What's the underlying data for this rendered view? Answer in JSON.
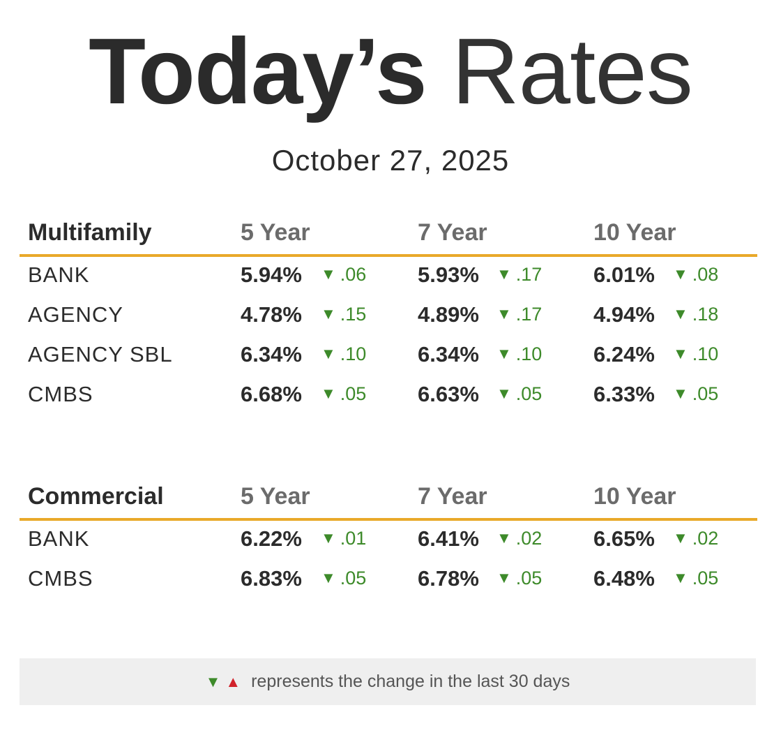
{
  "title": {
    "bold": "Today’s",
    "light": "Rates"
  },
  "date": "October 27, 2025",
  "multifamily": {
    "heading": "Multifamily",
    "columns": [
      "5 Year",
      "7 Year",
      "10 Year"
    ],
    "rows": [
      {
        "label": "BANK",
        "values": [
          {
            "rate": "5.94%",
            "change": ".06"
          },
          {
            "rate": "5.93%",
            "change": ".17"
          },
          {
            "rate": "6.01%",
            "change": ".08"
          }
        ]
      },
      {
        "label": "AGENCY",
        "values": [
          {
            "rate": "4.78%",
            "change": ".15"
          },
          {
            "rate": "4.89%",
            "change": ".17"
          },
          {
            "rate": "4.94%",
            "change": ".18"
          }
        ]
      },
      {
        "label": "AGENCY SBL",
        "values": [
          {
            "rate": "6.34%",
            "change": ".10"
          },
          {
            "rate": "6.34%",
            "change": ".10"
          },
          {
            "rate": "6.24%",
            "change": ".10"
          }
        ]
      },
      {
        "label": "CMBS",
        "values": [
          {
            "rate": "6.68%",
            "change": ".05"
          },
          {
            "rate": "6.63%",
            "change": ".05"
          },
          {
            "rate": "6.33%",
            "change": ".05"
          }
        ]
      }
    ]
  },
  "commercial": {
    "heading": "Commercial",
    "columns": [
      "5 Year",
      "7 Year",
      "10 Year"
    ],
    "rows": [
      {
        "label": "BANK",
        "values": [
          {
            "rate": "6.22%",
            "change": ".01"
          },
          {
            "rate": "6.41%",
            "change": ".02"
          },
          {
            "rate": "6.65%",
            "change": ".02"
          }
        ]
      },
      {
        "label": "CMBS",
        "values": [
          {
            "rate": "6.83%",
            "change": ".05"
          },
          {
            "rate": "6.78%",
            "change": ".05"
          },
          {
            "rate": "6.48%",
            "change": ".05"
          }
        ]
      }
    ]
  },
  "legend": {
    "down_glyph": "▼",
    "up_glyph": "▲",
    "text": "represents the change in the last 30 days"
  },
  "colors": {
    "accent_rule": "#e9a92a",
    "decrease": "#3d8a2a",
    "increase": "#d1222b"
  },
  "icons": {
    "change_down": "down-triangle-icon",
    "change_up": "up-triangle-icon"
  }
}
